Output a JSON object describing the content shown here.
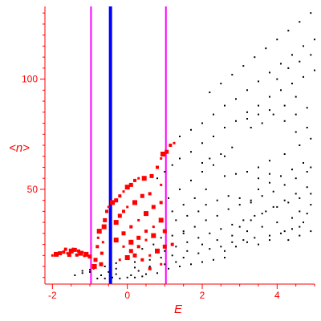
{
  "chart_data": {
    "type": "scatter",
    "xlabel": "E",
    "ylabel": "<n>",
    "xlim": [
      -2.2,
      5.0
    ],
    "ylim": [
      7,
      133
    ],
    "x_ticks": [
      -2,
      0,
      2,
      4
    ],
    "x_tick_labels": [
      "-2",
      "0",
      "2",
      "4"
    ],
    "y_ticks": [
      50,
      100
    ],
    "y_tick_labels": [
      "50",
      "100"
    ],
    "vertical_lines": [
      {
        "x": -0.97,
        "color": "#ff00ff"
      },
      {
        "x": -0.45,
        "color": "#0000ff"
      },
      {
        "x": 1.03,
        "color": "#ff00ff"
      }
    ],
    "series": [
      {
        "color": "#000000",
        "points": [
          [
            -0.8,
            9.5
          ],
          [
            -0.6,
            9.5
          ],
          [
            -0.4,
            10
          ],
          [
            -0.2,
            9.5
          ],
          [
            0.0,
            10
          ],
          [
            0.2,
            10
          ],
          [
            0.4,
            10.5
          ],
          [
            -0.7,
            11
          ],
          [
            -0.3,
            11.5
          ],
          [
            0.1,
            11
          ],
          [
            0.5,
            11.5
          ],
          [
            0.8,
            12
          ],
          [
            -0.5,
            12.5
          ],
          [
            0.3,
            13
          ],
          [
            -0.3,
            14
          ],
          [
            0.2,
            14.5
          ],
          [
            0.6,
            15
          ],
          [
            1.0,
            16
          ],
          [
            1.3,
            17
          ],
          [
            -1.0,
            13.5
          ],
          [
            -1.2,
            13
          ],
          [
            -0.9,
            14
          ],
          [
            -0.6,
            15
          ],
          [
            -0.3,
            16.5
          ],
          [
            0.2,
            17
          ],
          [
            0.6,
            18
          ],
          [
            0.9,
            19
          ],
          [
            1.2,
            20
          ],
          [
            1.5,
            19
          ],
          [
            1.6,
            22
          ],
          [
            1.9,
            21
          ],
          [
            2.2,
            23
          ],
          [
            2.5,
            24
          ],
          [
            2.8,
            26
          ],
          [
            3.1,
            27
          ],
          [
            3.4,
            28
          ],
          [
            3.8,
            29
          ],
          [
            4.2,
            31
          ],
          [
            4.6,
            33
          ],
          [
            1.1,
            14
          ],
          [
            1.4,
            15
          ],
          [
            1.7,
            16
          ],
          [
            2.0,
            17
          ],
          [
            2.3,
            18
          ],
          [
            2.6,
            19
          ],
          [
            1.0,
            22
          ],
          [
            1.3,
            24
          ],
          [
            1.6,
            26
          ],
          [
            1.9,
            28
          ],
          [
            2.2,
            30
          ],
          [
            2.5,
            32
          ],
          [
            2.8,
            34
          ],
          [
            3.1,
            36
          ],
          [
            3.4,
            38
          ],
          [
            3.7,
            40
          ],
          [
            4.0,
            42
          ],
          [
            4.3,
            44
          ],
          [
            4.6,
            46
          ],
          [
            4.9,
            48
          ],
          [
            2.0,
            25
          ],
          [
            2.4,
            27
          ],
          [
            2.8,
            29
          ],
          [
            3.2,
            31
          ],
          [
            3.6,
            33
          ],
          [
            4.0,
            35
          ],
          [
            4.4,
            37
          ],
          [
            4.8,
            39
          ],
          [
            1.5,
            30
          ],
          [
            1.8,
            33
          ],
          [
            2.1,
            36
          ],
          [
            2.4,
            38
          ],
          [
            2.7,
            41
          ],
          [
            3.0,
            43
          ],
          [
            3.3,
            45
          ],
          [
            3.6,
            47
          ],
          [
            3.9,
            49
          ],
          [
            4.2,
            52
          ],
          [
            4.5,
            55
          ],
          [
            4.8,
            58
          ],
          [
            2.6,
            22
          ],
          [
            2.9,
            24
          ],
          [
            3.2,
            26
          ],
          [
            3.5,
            25
          ],
          [
            3.8,
            27
          ],
          [
            4.1,
            30
          ],
          [
            4.4,
            32
          ],
          [
            4.7,
            35
          ],
          [
            3.0,
            33
          ],
          [
            3.3,
            36
          ],
          [
            3.6,
            39
          ],
          [
            3.9,
            42
          ],
          [
            4.2,
            45
          ],
          [
            4.5,
            48
          ],
          [
            4.8,
            51
          ],
          [
            3.5,
            50
          ],
          [
            3.8,
            53
          ],
          [
            4.1,
            56
          ],
          [
            4.4,
            59
          ],
          [
            4.7,
            62
          ],
          [
            4.9,
            60
          ],
          [
            4.6,
            40
          ],
          [
            4.9,
            43
          ],
          [
            4.3,
            27
          ],
          [
            4.6,
            29
          ],
          [
            4.9,
            31
          ],
          [
            1.2,
            40
          ],
          [
            1.5,
            43
          ],
          [
            1.8,
            46
          ],
          [
            2.1,
            50
          ],
          [
            1.1,
            46
          ],
          [
            1.4,
            50
          ],
          [
            1.7,
            54
          ],
          [
            2.0,
            58
          ],
          [
            2.3,
            61
          ],
          [
            2.6,
            65
          ],
          [
            2.0,
            62
          ],
          [
            2.2,
            64
          ],
          [
            2.5,
            66
          ],
          [
            2.8,
            69
          ],
          [
            3.5,
            60
          ],
          [
            3.8,
            63
          ],
          [
            4.2,
            66
          ],
          [
            4.6,
            70
          ],
          [
            4.9,
            73
          ],
          [
            3.3,
            78
          ],
          [
            3.6,
            80
          ],
          [
            3.9,
            84
          ],
          [
            4.2,
            88
          ],
          [
            4.5,
            92
          ],
          [
            3.2,
            82
          ],
          [
            3.5,
            84
          ],
          [
            3.8,
            86
          ],
          [
            4.0,
            100
          ],
          [
            4.3,
            105
          ],
          [
            4.6,
            108
          ],
          [
            4.9,
            111
          ],
          [
            4.2,
            81
          ],
          [
            4.5,
            84
          ],
          [
            4.8,
            87
          ],
          [
            4.5,
            76
          ],
          [
            4.8,
            78
          ],
          [
            0.8,
            55
          ],
          [
            1.0,
            58
          ],
          [
            1.2,
            61
          ],
          [
            1.4,
            64
          ],
          [
            1.7,
            67
          ],
          [
            2.0,
            71
          ],
          [
            2.3,
            74
          ],
          [
            2.6,
            78
          ],
          [
            2.9,
            81
          ],
          [
            3.2,
            85
          ],
          [
            3.5,
            88
          ],
          [
            3.8,
            92
          ],
          [
            4.1,
            95
          ],
          [
            4.4,
            98
          ],
          [
            4.7,
            101
          ],
          [
            5.0,
            104
          ],
          [
            1.4,
            74
          ],
          [
            1.7,
            77
          ],
          [
            2.0,
            80
          ],
          [
            2.3,
            84
          ],
          [
            2.6,
            88
          ],
          [
            2.9,
            91
          ],
          [
            3.2,
            95
          ],
          [
            3.5,
            99
          ],
          [
            3.8,
            103
          ],
          [
            4.1,
            107
          ],
          [
            4.4,
            111
          ],
          [
            4.7,
            115
          ],
          [
            5.0,
            118
          ],
          [
            2.2,
            94
          ],
          [
            2.5,
            98
          ],
          [
            2.8,
            102
          ],
          [
            3.1,
            106
          ],
          [
            3.4,
            110
          ],
          [
            3.7,
            114
          ],
          [
            4.0,
            118
          ],
          [
            4.3,
            122
          ],
          [
            4.6,
            126
          ],
          [
            4.9,
            130
          ],
          [
            2.6,
            56
          ],
          [
            2.9,
            57
          ],
          [
            3.2,
            58
          ],
          [
            3.5,
            55
          ],
          [
            3.8,
            57
          ],
          [
            2.1,
            43
          ],
          [
            2.4,
            45
          ],
          [
            2.7,
            47
          ],
          [
            3.0,
            46
          ],
          [
            3.3,
            44
          ],
          [
            1.3,
            36
          ],
          [
            1.6,
            38
          ],
          [
            1.9,
            40
          ],
          [
            0.9,
            28
          ],
          [
            1.2,
            29
          ],
          [
            1.5,
            31
          ],
          [
            0.7,
            25
          ],
          [
            0.4,
            23
          ],
          [
            -1.4,
            11
          ],
          [
            -1.2,
            12
          ],
          [
            -1.0,
            12.5
          ]
        ]
      },
      {
        "color": "#ff0000",
        "points": [
          [
            -2.0,
            20
          ],
          [
            -1.9,
            20.5
          ],
          [
            -1.8,
            21
          ],
          [
            -1.7,
            21.5
          ],
          [
            -1.6,
            21
          ],
          [
            -1.5,
            22
          ],
          [
            -1.4,
            22.5
          ],
          [
            -1.3,
            22
          ],
          [
            -1.2,
            21.5
          ],
          [
            -1.1,
            20.5
          ],
          [
            -1.0,
            19.5
          ],
          [
            -1.65,
            22.8
          ],
          [
            -1.45,
            23
          ],
          [
            -1.25,
            21
          ],
          [
            -1.55,
            20.3
          ],
          [
            -1.35,
            20.2
          ],
          [
            -1.15,
            19.8
          ],
          [
            -0.88,
            15
          ],
          [
            -0.85,
            18
          ],
          [
            -0.8,
            24
          ],
          [
            -0.78,
            28
          ],
          [
            -0.75,
            31
          ],
          [
            -0.7,
            16
          ],
          [
            -0.68,
            21
          ],
          [
            -0.65,
            26
          ],
          [
            -0.62,
            33
          ],
          [
            -0.6,
            36
          ],
          [
            -0.55,
            40
          ],
          [
            -0.5,
            42
          ],
          [
            -0.4,
            44
          ],
          [
            -0.3,
            45
          ],
          [
            -0.2,
            47
          ],
          [
            -0.1,
            49
          ],
          [
            0.0,
            51
          ],
          [
            0.1,
            52
          ],
          [
            0.2,
            54
          ],
          [
            0.3,
            55
          ],
          [
            0.45,
            55
          ],
          [
            0.65,
            56
          ],
          [
            0.8,
            60
          ],
          [
            0.9,
            64
          ],
          [
            0.95,
            66
          ],
          [
            1.05,
            67
          ],
          [
            1.15,
            70
          ],
          [
            1.25,
            71
          ],
          [
            -0.3,
            35
          ],
          [
            -0.2,
            38
          ],
          [
            -0.1,
            40
          ],
          [
            0.0,
            42
          ],
          [
            0.2,
            44
          ],
          [
            0.4,
            47
          ],
          [
            0.6,
            48
          ],
          [
            0.9,
            52
          ],
          [
            -0.3,
            27
          ],
          [
            -0.1,
            30
          ],
          [
            0.1,
            33
          ],
          [
            0.3,
            36
          ],
          [
            0.5,
            39
          ],
          [
            0.7,
            42
          ],
          [
            0.9,
            44
          ],
          [
            -0.1,
            24
          ],
          [
            0.1,
            26
          ],
          [
            0.3,
            28
          ],
          [
            0.5,
            31
          ],
          [
            0.7,
            33
          ],
          [
            0.9,
            36
          ],
          [
            0.1,
            22
          ],
          [
            0.3,
            24
          ],
          [
            0.5,
            27
          ],
          [
            0.7,
            29
          ],
          [
            1.0,
            31
          ],
          [
            0.4,
            18
          ],
          [
            0.6,
            20
          ],
          [
            0.8,
            22
          ],
          [
            1.0,
            24
          ],
          [
            1.2,
            25
          ],
          [
            -0.2,
            18
          ],
          [
            0.0,
            19
          ],
          [
            0.2,
            20
          ],
          [
            0.6,
            14
          ],
          [
            0.9,
            16
          ]
        ]
      }
    ]
  }
}
